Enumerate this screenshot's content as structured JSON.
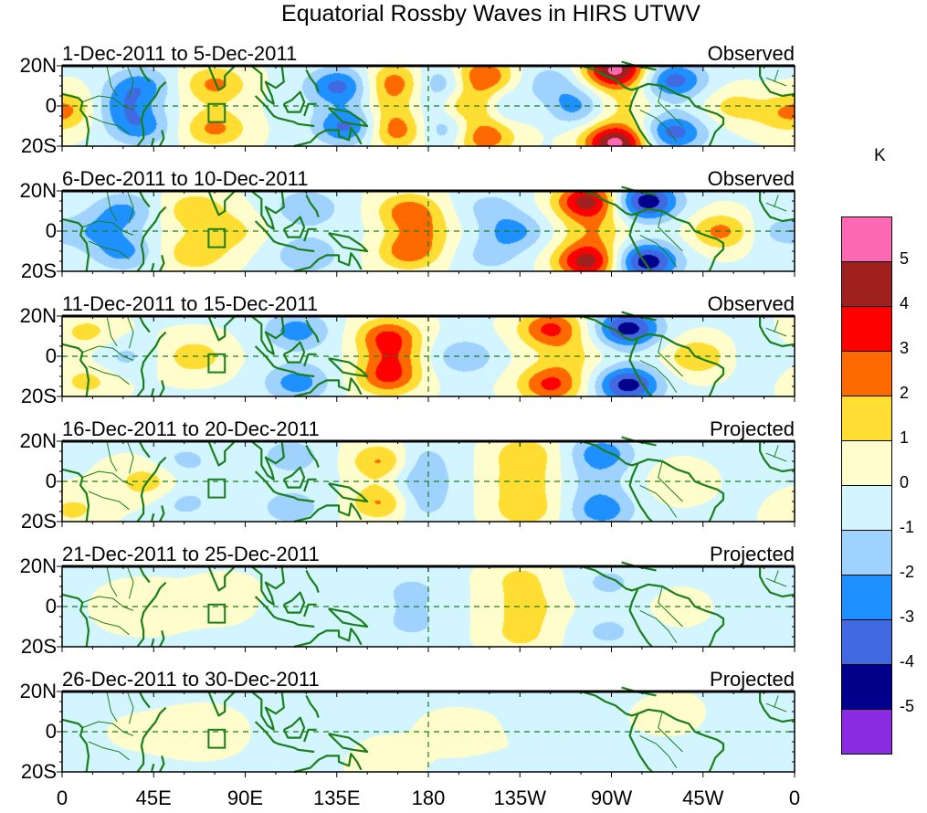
{
  "chart_data": {
    "type": "heatmap",
    "title": "Equatorial Rossby Waves in HIRS UTWV",
    "colorbar": {
      "unit": "K",
      "levels": [
        5,
        4,
        3,
        2,
        1,
        0,
        -1,
        -2,
        -3,
        -4,
        -5
      ],
      "colors": [
        "#ff69b4",
        "#a02020",
        "#ff0000",
        "#ff6a00",
        "#ffdd33",
        "#fffdcc",
        "#d2f5ff",
        "#a0d2ff",
        "#1e90ff",
        "#4169e1",
        "#00008b",
        "#8a2be2"
      ]
    },
    "x_axis": {
      "range": [
        0,
        360
      ],
      "ticks": [
        0,
        45,
        90,
        135,
        180,
        225,
        270,
        315,
        360
      ],
      "tick_labels": [
        "0",
        "45E",
        "90E",
        "135E",
        "180",
        "135W",
        "90W",
        "45W",
        "0"
      ]
    },
    "y_axis": {
      "range": [
        -20,
        20
      ],
      "ticks": [
        20,
        0,
        -20
      ],
      "tick_labels": [
        "20N",
        "0",
        "20S"
      ]
    },
    "grid": "dashed equator and dateline",
    "panels": [
      {
        "title": "1-Dec-2011 to 5-Dec-2011",
        "status": "Observed",
        "features": [
          {
            "lon": 38,
            "lat": 10,
            "value": -2.5
          },
          {
            "lon": 38,
            "lat": -10,
            "value": -2.5
          },
          {
            "lon": 28,
            "lat": 0,
            "value": -2
          },
          {
            "lon": 5,
            "lat": 0,
            "value": 1.5
          },
          {
            "lon": 75,
            "lat": 11,
            "value": 2.3
          },
          {
            "lon": 75,
            "lat": -11,
            "value": 2.3
          },
          {
            "lon": 136,
            "lat": 10,
            "value": -3.2
          },
          {
            "lon": 140,
            "lat": -10,
            "value": -3.2
          },
          {
            "lon": 164,
            "lat": 12,
            "value": 2.8
          },
          {
            "lon": 164,
            "lat": -12,
            "value": 2.8
          },
          {
            "lon": 164,
            "lat": 0,
            "value": 1.5
          },
          {
            "lon": 178,
            "lat": 0,
            "value": -1
          },
          {
            "lon": 186,
            "lat": 12,
            "value": -2.2
          },
          {
            "lon": 190,
            "lat": -12,
            "value": -2.2
          },
          {
            "lon": 200,
            "lat": 0,
            "value": 2.4
          },
          {
            "lon": 206,
            "lat": 15,
            "value": 3.3
          },
          {
            "lon": 206,
            "lat": -15,
            "value": 3.3
          },
          {
            "lon": 220,
            "lat": 0,
            "value": -2
          },
          {
            "lon": 233,
            "lat": 0,
            "value": 1.2
          },
          {
            "lon": 250,
            "lat": 0,
            "value": -2.6
          },
          {
            "lon": 240,
            "lat": 12,
            "value": -1.5
          },
          {
            "lon": 272,
            "lat": 18,
            "value": 5.5
          },
          {
            "lon": 272,
            "lat": -18,
            "value": 5.5
          },
          {
            "lon": 276,
            "lat": 0,
            "value": 1.2
          },
          {
            "lon": 300,
            "lat": 13,
            "value": -3.4
          },
          {
            "lon": 300,
            "lat": -13,
            "value": -3.4
          },
          {
            "lon": 330,
            "lat": 0,
            "value": 1.6
          },
          {
            "lon": 355,
            "lat": -5,
            "value": 1.5
          }
        ]
      },
      {
        "title": "6-Dec-2011 to 10-Dec-2011",
        "status": "Observed",
        "features": [
          {
            "lon": 30,
            "lat": 10,
            "value": -2.2
          },
          {
            "lon": 30,
            "lat": -10,
            "value": -2.2
          },
          {
            "lon": 15,
            "lat": 0,
            "value": -1.6
          },
          {
            "lon": 65,
            "lat": 11,
            "value": 1.8
          },
          {
            "lon": 65,
            "lat": -11,
            "value": 1.8
          },
          {
            "lon": 82,
            "lat": 0,
            "value": 1.4
          },
          {
            "lon": 120,
            "lat": 12,
            "value": -1.8
          },
          {
            "lon": 120,
            "lat": -12,
            "value": -1.8
          },
          {
            "lon": 170,
            "lat": 10,
            "value": 2.7
          },
          {
            "lon": 170,
            "lat": -10,
            "value": 2.7
          },
          {
            "lon": 178,
            "lat": 0,
            "value": 1.3
          },
          {
            "lon": 222,
            "lat": 0,
            "value": -2.3
          },
          {
            "lon": 210,
            "lat": 12,
            "value": -1.2
          },
          {
            "lon": 210,
            "lat": -12,
            "value": -1.2
          },
          {
            "lon": 258,
            "lat": 15,
            "value": 4.6
          },
          {
            "lon": 258,
            "lat": -15,
            "value": 4.6
          },
          {
            "lon": 262,
            "lat": 0,
            "value": 1.5
          },
          {
            "lon": 287,
            "lat": 15,
            "value": -4.6
          },
          {
            "lon": 287,
            "lat": -15,
            "value": -4.6
          },
          {
            "lon": 324,
            "lat": 0,
            "value": 2.6
          },
          {
            "lon": 350,
            "lat": 0,
            "value": -1
          }
        ]
      },
      {
        "title": "11-Dec-2011 to 15-Dec-2011",
        "status": "Observed",
        "features": [
          {
            "lon": 12,
            "lat": 12,
            "value": 1.4
          },
          {
            "lon": 12,
            "lat": -12,
            "value": 1.4
          },
          {
            "lon": 30,
            "lat": 0,
            "value": -1.3
          },
          {
            "lon": 65,
            "lat": 0,
            "value": 1.6
          },
          {
            "lon": 115,
            "lat": 13,
            "value": -2.4
          },
          {
            "lon": 115,
            "lat": -13,
            "value": -2.4
          },
          {
            "lon": 160,
            "lat": 10,
            "value": 3.2
          },
          {
            "lon": 160,
            "lat": -10,
            "value": 3.2
          },
          {
            "lon": 162,
            "lat": 0,
            "value": 1.5
          },
          {
            "lon": 198,
            "lat": 0,
            "value": -1.8
          },
          {
            "lon": 240,
            "lat": 14,
            "value": 3.3
          },
          {
            "lon": 240,
            "lat": -14,
            "value": 3.3
          },
          {
            "lon": 250,
            "lat": 0,
            "value": 1.1
          },
          {
            "lon": 278,
            "lat": 14,
            "value": -4.4
          },
          {
            "lon": 278,
            "lat": -14,
            "value": -4.4
          },
          {
            "lon": 312,
            "lat": 0,
            "value": 2.2
          },
          {
            "lon": 345,
            "lat": 0,
            "value": -0.5
          }
        ]
      },
      {
        "title": "16-Dec-2011 to 20-Dec-2011",
        "status": "Projected",
        "features": [
          {
            "lon": 42,
            "lat": 0,
            "value": 1.6
          },
          {
            "lon": 5,
            "lat": -14,
            "value": 1.3
          },
          {
            "lon": 60,
            "lat": 10,
            "value": -1.3
          },
          {
            "lon": 60,
            "lat": -10,
            "value": -1.3
          },
          {
            "lon": 112,
            "lat": 13,
            "value": -1.5
          },
          {
            "lon": 112,
            "lat": -13,
            "value": -1.5
          },
          {
            "lon": 157,
            "lat": 10,
            "value": 2.5
          },
          {
            "lon": 157,
            "lat": -10,
            "value": 2.5
          },
          {
            "lon": 176,
            "lat": 0,
            "value": -1.6
          },
          {
            "lon": 176,
            "lat": 12,
            "value": -1.2
          },
          {
            "lon": 176,
            "lat": -12,
            "value": -1.2
          },
          {
            "lon": 227,
            "lat": 14,
            "value": 1.8
          },
          {
            "lon": 227,
            "lat": -14,
            "value": 1.8
          },
          {
            "lon": 226,
            "lat": 0,
            "value": 1.4
          },
          {
            "lon": 265,
            "lat": 14,
            "value": -2.6
          },
          {
            "lon": 265,
            "lat": -14,
            "value": -2.6
          },
          {
            "lon": 262,
            "lat": 0,
            "value": -1.1
          },
          {
            "lon": 305,
            "lat": 0,
            "value": 1.1
          }
        ]
      },
      {
        "title": "21-Dec-2011 to 25-Dec-2011",
        "status": "Projected",
        "features": [
          {
            "lon": 40,
            "lat": 0,
            "value": 0.9
          },
          {
            "lon": 80,
            "lat": 5,
            "value": 0.7
          },
          {
            "lon": 120,
            "lat": 0,
            "value": -0.6
          },
          {
            "lon": 172,
            "lat": 8,
            "value": -1.1
          },
          {
            "lon": 172,
            "lat": -8,
            "value": -1.1
          },
          {
            "lon": 225,
            "lat": 14,
            "value": 1.3
          },
          {
            "lon": 225,
            "lat": -14,
            "value": 1.3
          },
          {
            "lon": 228,
            "lat": 0,
            "value": 1.3
          },
          {
            "lon": 268,
            "lat": 12,
            "value": -1.2
          },
          {
            "lon": 268,
            "lat": -12,
            "value": -1.2
          },
          {
            "lon": 305,
            "lat": 0,
            "value": 0.6
          }
        ]
      },
      {
        "title": "26-Dec-2011 to 30-Dec-2011",
        "status": "Projected",
        "features": [
          {
            "lon": 70,
            "lat": 0,
            "value": 0.8
          },
          {
            "lon": 125,
            "lat": 0,
            "value": -0.6
          },
          {
            "lon": 158,
            "lat": -12,
            "value": 0.9
          },
          {
            "lon": 190,
            "lat": 0,
            "value": 0.6
          },
          {
            "lon": 240,
            "lat": 5,
            "value": -0.6
          },
          {
            "lon": 300,
            "lat": 8,
            "value": 0.6
          }
        ]
      }
    ]
  }
}
